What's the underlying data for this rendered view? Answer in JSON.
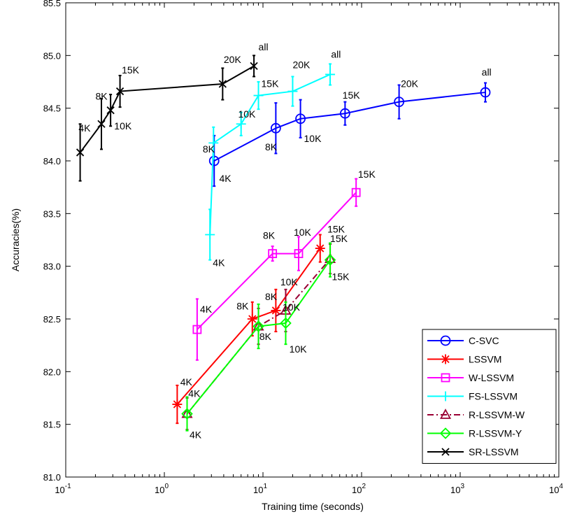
{
  "chart_data": {
    "type": "line",
    "xlabel": "Training time (seconds)",
    "ylabel": "Accuracies(%)",
    "xscale": "log",
    "xlim": [
      0.1,
      10000
    ],
    "ylim": [
      81.0,
      85.5
    ],
    "xticks": [
      0.1,
      1,
      10,
      100,
      1000,
      10000
    ],
    "xtick_labels": [
      {
        "base": "10",
        "exp": "-1"
      },
      {
        "base": "10",
        "exp": "0"
      },
      {
        "base": "10",
        "exp": "1"
      },
      {
        "base": "10",
        "exp": "2"
      },
      {
        "base": "10",
        "exp": "3"
      },
      {
        "base": "10",
        "exp": "4"
      }
    ],
    "yticks": [
      81.0,
      81.5,
      82.0,
      82.5,
      83.0,
      83.5,
      84.0,
      84.5,
      85.0,
      85.5
    ],
    "ytick_labels": [
      "81.0",
      "81.5",
      "82.0",
      "82.5",
      "83.0",
      "83.5",
      "84.0",
      "84.5",
      "85.0",
      "85.5"
    ],
    "grid": false,
    "legend_position": "bottom-right",
    "series": [
      {
        "name": "C-SVC",
        "color": "#0000ff",
        "marker": "circle",
        "dash": "solid",
        "x": [
          3.2,
          13.5,
          24,
          68,
          240,
          1800
        ],
        "y": [
          84.0,
          84.31,
          84.4,
          84.45,
          84.56,
          84.65
        ],
        "err": [
          0.24,
          0.24,
          0.18,
          0.11,
          0.16,
          0.09
        ]
      },
      {
        "name": "LSSVM",
        "color": "#ff0000",
        "marker": "asterisk",
        "dash": "solid",
        "x": [
          1.35,
          7.8,
          13.5,
          38
        ],
        "y": [
          81.69,
          82.5,
          82.58,
          83.17
        ],
        "err": [
          0.18,
          0.16,
          0.2,
          0.13
        ]
      },
      {
        "name": "W-LSSVM",
        "color": "#ff00ff",
        "marker": "square",
        "dash": "solid",
        "x": [
          2.15,
          12.5,
          23,
          88
        ],
        "y": [
          82.4,
          83.12,
          83.12,
          83.7
        ],
        "err": [
          0.29,
          0.07,
          0.16,
          0.13
        ]
      },
      {
        "name": "FS-LSSVM",
        "color": "#00ffff",
        "marker": "plus",
        "dash": "solid",
        "x": [
          2.9,
          3.15,
          6.0,
          9.0,
          20,
          48
        ],
        "y": [
          83.3,
          84.17,
          84.35,
          84.62,
          84.66,
          84.82
        ],
        "err": [
          0.24,
          0.15,
          0.11,
          0.13,
          0.14,
          0.1
        ]
      },
      {
        "name": "R-LSSVM-W",
        "color": "#990033",
        "marker": "triangle",
        "dash": "dashdot",
        "x": [
          1.7,
          9.0,
          17,
          48
        ],
        "y": [
          81.6,
          82.43,
          82.58,
          83.07
        ],
        "err": [
          0.15,
          0.17,
          0.2,
          0.14
        ]
      },
      {
        "name": "R-LSSVM-Y",
        "color": "#00ff00",
        "marker": "diamond",
        "dash": "solid",
        "x": [
          1.7,
          9.0,
          17,
          48
        ],
        "y": [
          81.6,
          82.43,
          82.46,
          83.06
        ],
        "err": [
          0.16,
          0.21,
          0.2,
          0.16
        ]
      },
      {
        "name": "SR-LSSVM",
        "color": "#000000",
        "marker": "cross",
        "dash": "solid",
        "x": [
          0.14,
          0.23,
          0.285,
          0.355,
          3.9,
          8.1
        ],
        "y": [
          84.08,
          84.35,
          84.48,
          84.66,
          84.73,
          84.9
        ],
        "err": [
          0.27,
          0.24,
          0.15,
          0.15,
          0.15,
          0.1
        ]
      }
    ],
    "annotations": [
      {
        "text": "4K",
        "x": 0.135,
        "y": 84.28
      },
      {
        "text": "8K",
        "x": 0.2,
        "y": 84.58
      },
      {
        "text": "10K",
        "x": 0.31,
        "y": 84.3
      },
      {
        "text": "15K",
        "x": 0.37,
        "y": 84.83
      },
      {
        "text": "20K",
        "x": 4.0,
        "y": 84.93
      },
      {
        "text": "all",
        "x": 9.0,
        "y": 85.05
      },
      {
        "text": "8K",
        "x": 2.45,
        "y": 84.08
      },
      {
        "text": "4K",
        "x": 3.6,
        "y": 83.8
      },
      {
        "text": "8K",
        "x": 10.5,
        "y": 84.1
      },
      {
        "text": "10K",
        "x": 26,
        "y": 84.18
      },
      {
        "text": "15K",
        "x": 64,
        "y": 84.59
      },
      {
        "text": "20K",
        "x": 250,
        "y": 84.7
      },
      {
        "text": "all",
        "x": 1650,
        "y": 84.81
      },
      {
        "text": "10K",
        "x": 5.6,
        "y": 84.41
      },
      {
        "text": "15K",
        "x": 9.6,
        "y": 84.7
      },
      {
        "text": "20K",
        "x": 20,
        "y": 84.88
      },
      {
        "text": "all",
        "x": 49,
        "y": 84.98
      },
      {
        "text": "4K",
        "x": 3.1,
        "y": 83.0
      },
      {
        "text": "15K",
        "x": 92,
        "y": 83.84
      },
      {
        "text": "8K",
        "x": 10.0,
        "y": 83.26
      },
      {
        "text": "10K",
        "x": 20.5,
        "y": 83.29
      },
      {
        "text": "15K",
        "x": 45,
        "y": 83.32
      },
      {
        "text": "15K",
        "x": 48,
        "y": 83.23
      },
      {
        "text": "4K",
        "x": 2.3,
        "y": 82.56
      },
      {
        "text": "8K",
        "x": 5.4,
        "y": 82.59
      },
      {
        "text": "8K",
        "x": 10.5,
        "y": 82.68
      },
      {
        "text": "10K",
        "x": 15,
        "y": 82.82
      },
      {
        "text": "10K",
        "x": 15.8,
        "y": 82.58
      },
      {
        "text": "8K",
        "x": 9.2,
        "y": 82.3
      },
      {
        "text": "10K",
        "x": 18.5,
        "y": 82.18
      },
      {
        "text": "15K",
        "x": 50,
        "y": 82.87
      },
      {
        "text": "4K",
        "x": 1.45,
        "y": 81.87
      },
      {
        "text": "4K",
        "x": 1.75,
        "y": 81.76
      },
      {
        "text": "4K",
        "x": 1.8,
        "y": 81.37
      }
    ]
  }
}
